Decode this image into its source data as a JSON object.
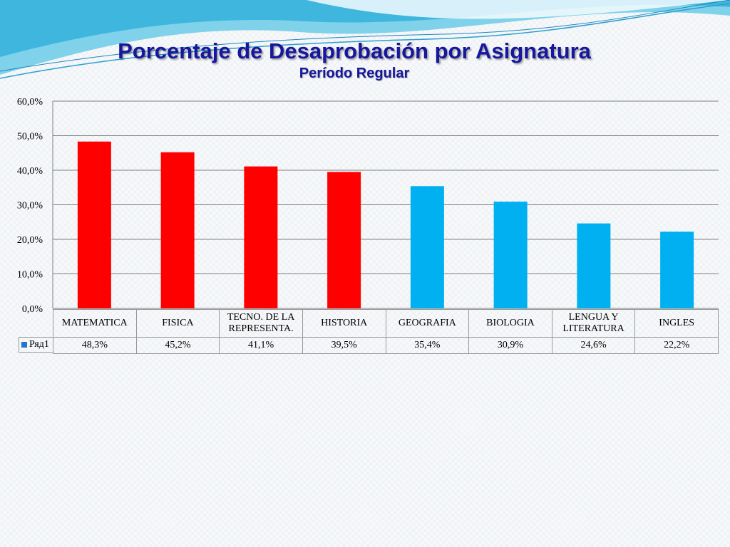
{
  "slide": {
    "title": "Porcentaje de Desaprobación por Asignatura",
    "subtitle": "Período Regular"
  },
  "colors": {
    "title": "#17179c",
    "high_bar": "#ff0000",
    "low_bar": "#00b0f0",
    "legend_key": "#1f78c8",
    "grid": "#808080"
  },
  "chart_data": {
    "type": "bar",
    "categories": [
      "MATEMATICA",
      "FISICA",
      "TECNO. DE LA REPRESENTA.",
      "HISTORIA",
      "GEOGRAFIA",
      "BIOLOGIA",
      "LENGUA Y LITERATURA",
      "INGLES"
    ],
    "series": [
      {
        "name": "Ряд1",
        "values": [
          48.3,
          45.2,
          41.1,
          39.5,
          35.4,
          30.9,
          24.6,
          22.2
        ]
      }
    ],
    "value_labels": [
      "48,3%",
      "45,2%",
      "41,1%",
      "39,5%",
      "35,4%",
      "30,9%",
      "24,6%",
      "22,2%"
    ],
    "bar_colors": [
      "#ff0000",
      "#ff0000",
      "#ff0000",
      "#ff0000",
      "#00b0f0",
      "#00b0f0",
      "#00b0f0",
      "#00b0f0"
    ],
    "y_ticks": [
      "0,0%",
      "10,0%",
      "20,0%",
      "30,0%",
      "40,0%",
      "50,0%",
      "60,0%"
    ],
    "ylim": [
      0,
      60
    ],
    "grid": true,
    "legend": "data-table-left"
  }
}
